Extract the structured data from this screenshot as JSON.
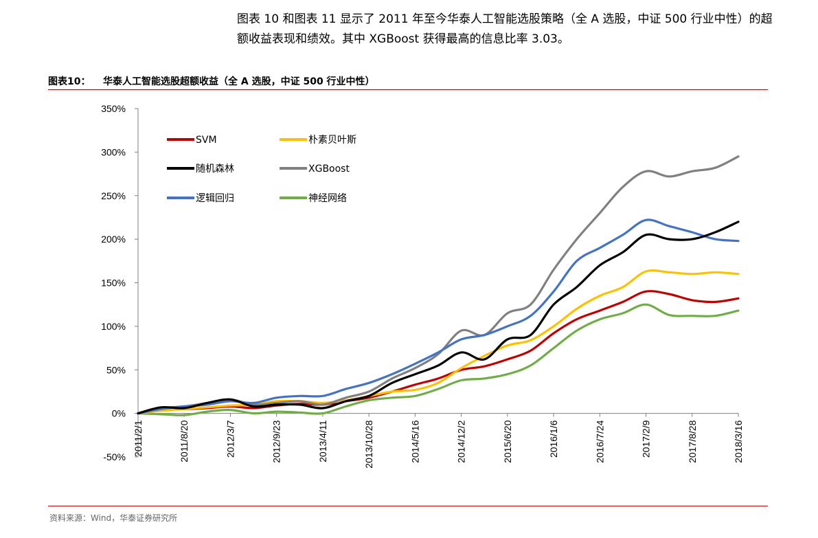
{
  "intro_text": "图表 10 和图表 11 显示了 2011 年至今华泰人工智能选股策略（全 A 选股，中证 500 行业中性）的超额收益表现和绩效。其中 XGBoost 获得最高的信息比率 3.03。",
  "figure": {
    "number": "图表10：",
    "title": "华泰人工智能选股超额收益（全 A 选股，中证 500 行业中性）"
  },
  "source": "资料来源：Wind，华泰证券研究所",
  "colors": {
    "rule": "#c00000",
    "SVM": "#c00000",
    "朴素贝叶斯": "#ffc000",
    "随机森林": "#000000",
    "XGBoost": "#808080",
    "逻辑回归": "#4472c4",
    "神经网络": "#70ad47"
  },
  "chart_data": {
    "type": "line",
    "title": "",
    "xlabel": "",
    "ylabel": "",
    "y_unit": "%",
    "ylim": [
      -50,
      350
    ],
    "y_ticks": [
      -50,
      0,
      50,
      100,
      150,
      200,
      250,
      300,
      350
    ],
    "y_tick_labels": [
      "-50%",
      "0%",
      "50%",
      "100%",
      "150%",
      "200%",
      "250%",
      "300%",
      "350%"
    ],
    "x_tick_labels": [
      "2011/2/1",
      "2011/8/20",
      "2012/3/7",
      "2012/9/23",
      "2013/4/11",
      "2013/10/28",
      "2014/5/16",
      "2014/12/2",
      "2015/6/20",
      "2016/1/6",
      "2016/7/24",
      "2017/2/9",
      "2017/8/28",
      "2018/3/16"
    ],
    "x": [
      "2011/2/1",
      "2011/5/12",
      "2011/8/20",
      "2011/11/28",
      "2012/3/7",
      "2012/6/15",
      "2012/9/23",
      "2013/1/1",
      "2013/4/11",
      "2013/7/20",
      "2013/10/28",
      "2014/2/5",
      "2014/5/16",
      "2014/8/24",
      "2014/12/2",
      "2015/3/12",
      "2015/6/20",
      "2015/9/28",
      "2016/1/6",
      "2016/4/15",
      "2016/7/24",
      "2016/11/1",
      "2017/2/9",
      "2017/5/20",
      "2017/8/28",
      "2017/12/6",
      "2018/3/16"
    ],
    "legend_position": "top-left",
    "grid": false,
    "series": [
      {
        "name": "SVM",
        "values": [
          0,
          4,
          5,
          6,
          8,
          6,
          9,
          11,
          10,
          14,
          18,
          25,
          33,
          40,
          50,
          54,
          62,
          72,
          92,
          108,
          118,
          128,
          140,
          137,
          130,
          128,
          132
        ]
      },
      {
        "name": "朴素贝叶斯",
        "values": [
          0,
          3,
          5,
          7,
          9,
          10,
          14,
          14,
          12,
          15,
          20,
          25,
          27,
          35,
          52,
          66,
          78,
          84,
          100,
          120,
          135,
          145,
          163,
          162,
          160,
          162,
          160
        ]
      },
      {
        "name": "随机森林",
        "values": [
          0,
          7,
          6,
          12,
          16,
          8,
          10,
          10,
          6,
          14,
          20,
          35,
          45,
          55,
          70,
          62,
          85,
          90,
          125,
          145,
          170,
          185,
          205,
          200,
          200,
          208,
          220
        ]
      },
      {
        "name": "XGBoost",
        "values": [
          0,
          6,
          8,
          12,
          16,
          10,
          12,
          14,
          10,
          18,
          25,
          40,
          52,
          68,
          95,
          90,
          115,
          125,
          165,
          200,
          230,
          260,
          278,
          272,
          278,
          282,
          295
        ]
      },
      {
        "name": "逻辑回归",
        "values": [
          0,
          5,
          8,
          10,
          14,
          12,
          18,
          20,
          20,
          28,
          35,
          45,
          57,
          70,
          85,
          90,
          100,
          112,
          140,
          175,
          190,
          205,
          222,
          215,
          208,
          200,
          198
        ]
      },
      {
        "name": "神经网络",
        "values": [
          0,
          -1,
          -2,
          2,
          4,
          0,
          2,
          1,
          0,
          8,
          15,
          18,
          20,
          28,
          38,
          40,
          45,
          55,
          75,
          95,
          108,
          115,
          125,
          113,
          112,
          112,
          118
        ]
      }
    ]
  }
}
